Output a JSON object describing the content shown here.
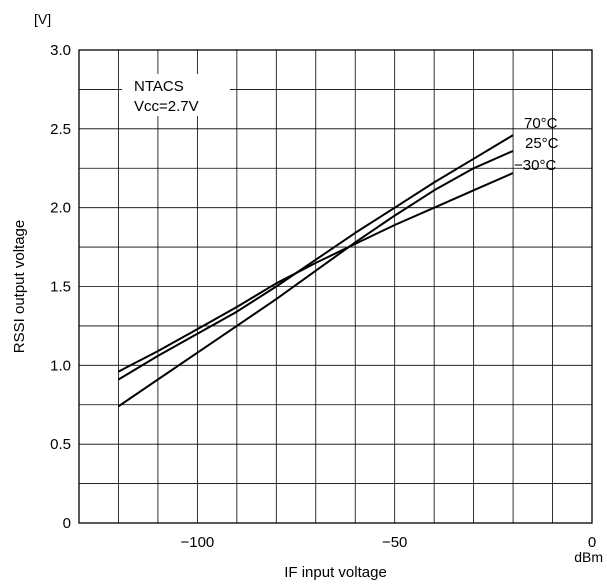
{
  "chart_data": {
    "type": "line",
    "title": "",
    "xlabel": "IF input voltage",
    "ylabel": "RSSI output voltage",
    "x_unit": "dBm",
    "y_unit": "[V]",
    "xlim": [
      -130,
      0
    ],
    "ylim": [
      0,
      3.0
    ],
    "x_ticks": [
      {
        "value": -100,
        "label": "−100"
      },
      {
        "value": -50,
        "label": "−50"
      },
      {
        "value": 0,
        "label": "0"
      }
    ],
    "y_ticks": [
      {
        "value": 0,
        "label": "0"
      },
      {
        "value": 0.5,
        "label": "0.5"
      },
      {
        "value": 1.0,
        "label": "1.0"
      },
      {
        "value": 1.5,
        "label": "1.5"
      },
      {
        "value": 2.0,
        "label": "2.0"
      },
      {
        "value": 2.5,
        "label": "2.5"
      },
      {
        "value": 3.0,
        "label": "3.0"
      }
    ],
    "grid": true,
    "x_grid_step": 10,
    "y_grid_step": 0.25,
    "annotation_lines": [
      "NTACS",
      "Vcc=2.7V"
    ],
    "series": [
      {
        "name": "70°C",
        "x": [
          -120,
          -110,
          -100,
          -90,
          -80,
          -70,
          -60,
          -50,
          -40,
          -30,
          -20
        ],
        "y": [
          0.91,
          1.06,
          1.2,
          1.34,
          1.5,
          1.67,
          1.84,
          2.0,
          2.16,
          2.31,
          2.46
        ],
        "color": "#000000"
      },
      {
        "name": "25°C",
        "x": [
          -120,
          -110,
          -100,
          -90,
          -80,
          -70,
          -60,
          -50,
          -40,
          -30,
          -20
        ],
        "y": [
          0.74,
          0.91,
          1.08,
          1.25,
          1.42,
          1.6,
          1.78,
          1.95,
          2.11,
          2.25,
          2.36
        ],
        "color": "#000000"
      },
      {
        "name": "−30°C",
        "x": [
          -120,
          -110,
          -100,
          -90,
          -80,
          -70,
          -60,
          -50,
          -40,
          -30,
          -20
        ],
        "y": [
          0.96,
          1.09,
          1.23,
          1.37,
          1.52,
          1.65,
          1.77,
          1.89,
          2.0,
          2.11,
          2.22
        ],
        "color": "#000000"
      }
    ]
  }
}
